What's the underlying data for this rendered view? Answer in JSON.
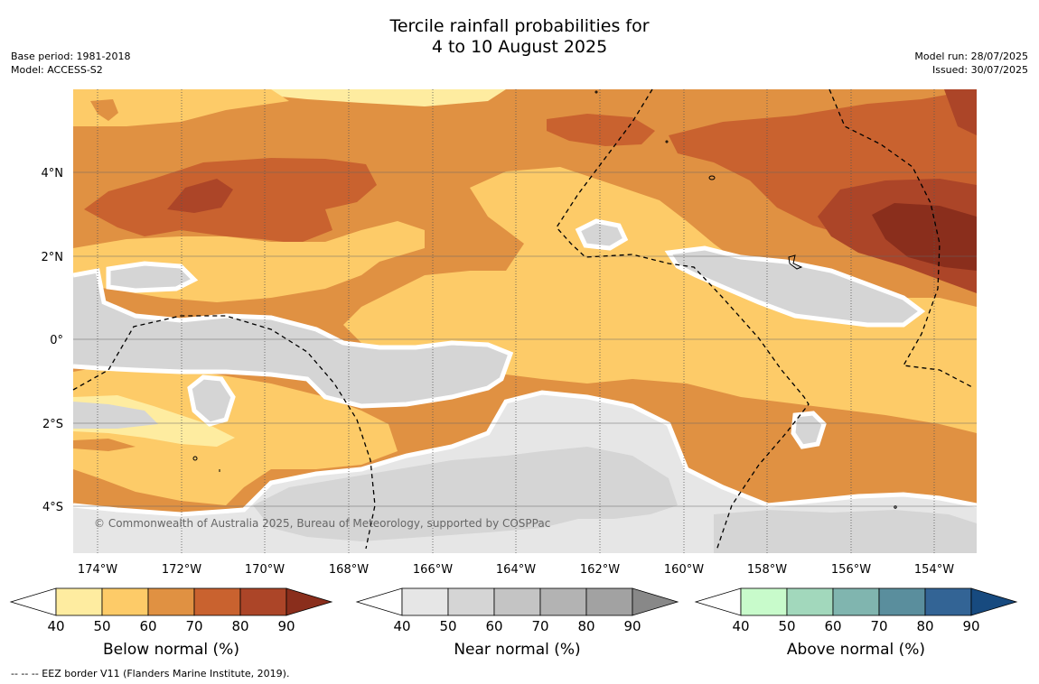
{
  "title": {
    "line1": "Tercile rainfall probabilities for",
    "line2": "4 to 10 August 2025"
  },
  "meta": {
    "base_period": "Base period: 1981-2018",
    "model": "Model: ACCESS-S2",
    "model_run": "Model run: 28/07/2025",
    "issued": "Issued: 30/07/2025"
  },
  "map": {
    "lat_labels": [
      "4°N",
      "2°N",
      "0°",
      "2°S",
      "4°S"
    ],
    "lon_labels": [
      "174°W",
      "172°W",
      "170°W",
      "168°W",
      "166°W",
      "164°W",
      "162°W",
      "160°W",
      "158°W",
      "156°W",
      "154°W"
    ],
    "copyright": "© Commonwealth of Australia 2025, Bureau of Meteorology, supported by COSPPac",
    "land_color": "#d5d5d5",
    "below_normal_colors": [
      "#feeca0",
      "#fdcb68",
      "#e09142",
      "#c9622f",
      "#ac4528",
      "#8a2e1c"
    ],
    "near_normal_colors": [
      "#e6e6e6",
      "#d5d5d5",
      "#c4c4c4",
      "#b3b3b3",
      "#a2a2a2",
      "#888888"
    ]
  },
  "colorbars": [
    {
      "title": "Below normal (%)",
      "ticks": [
        "40",
        "50",
        "60",
        "70",
        "80",
        "90"
      ],
      "colors": [
        "#ffffff",
        "#feeca0",
        "#fdcb68",
        "#e09142",
        "#c9622f",
        "#ac4528",
        "#8a2e1c"
      ]
    },
    {
      "title": "Near normal (%)",
      "ticks": [
        "40",
        "50",
        "60",
        "70",
        "80",
        "90"
      ],
      "colors": [
        "#ffffff",
        "#e6e6e6",
        "#d5d5d5",
        "#c4c4c4",
        "#b3b3b3",
        "#a2a2a2",
        "#888888"
      ]
    },
    {
      "title": "Above normal (%)",
      "ticks": [
        "40",
        "50",
        "60",
        "70",
        "80",
        "90"
      ],
      "colors": [
        "#ffffff",
        "#c8fbcb",
        "#a2d8bc",
        "#80b5af",
        "#5a8e9d",
        "#336495",
        "#174a7f"
      ]
    }
  ],
  "footnote": "-- -- -- EEZ border V11 (Flanders Marine Institute, 2019)."
}
